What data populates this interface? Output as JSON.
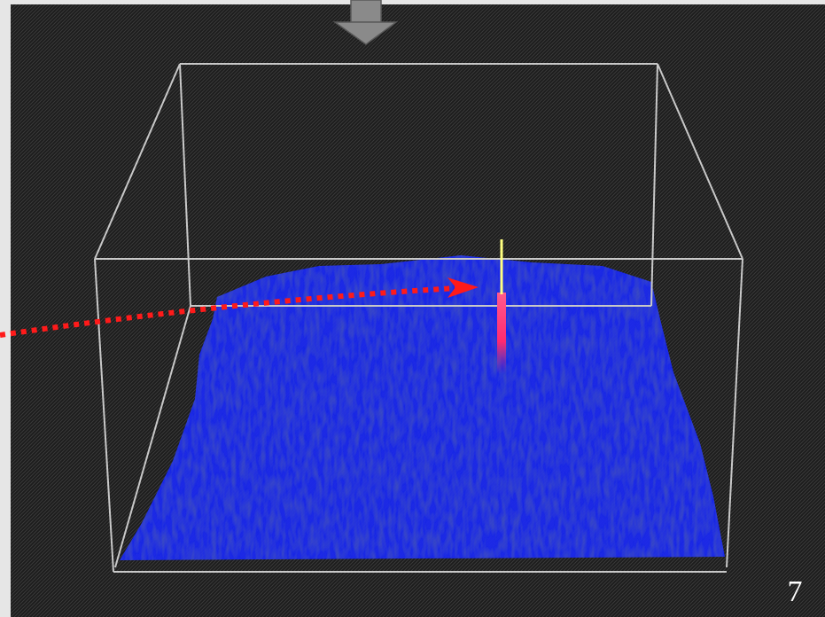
{
  "slide_number": "7"
}
